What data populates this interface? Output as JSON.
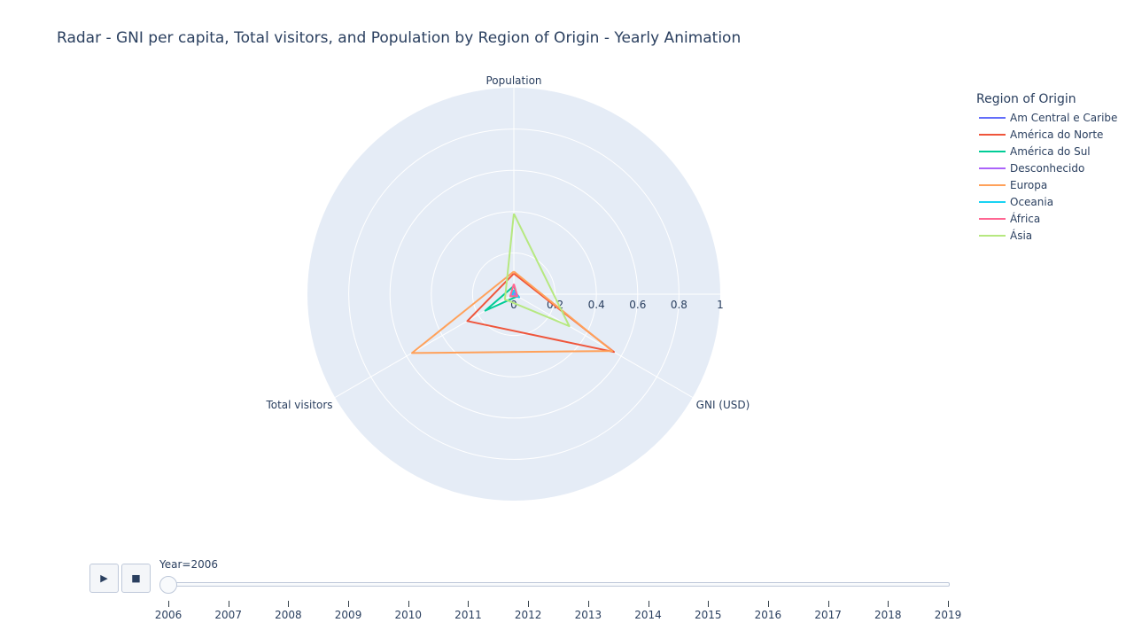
{
  "title": "Radar - GNI per capita, Total visitors, and Population by Region of Origin - Yearly Animation",
  "chart_data": {
    "type": "radar",
    "axes": [
      "Population",
      "GNI (USD)",
      "Total visitors"
    ],
    "radial_ticks": [
      "0",
      "0.2",
      "0.4",
      "0.6",
      "0.8",
      "1"
    ],
    "radial_range": [
      0,
      1
    ],
    "legend_title": "Region of Origin",
    "legend_position": "top-right",
    "series": [
      {
        "name": "Am Central e Caribe",
        "color": "#636efa",
        "values": [
          0.02,
          0.02,
          0.02
        ]
      },
      {
        "name": "América do Norte",
        "color": "#ef553b",
        "values": [
          0.1,
          0.56,
          0.26
        ]
      },
      {
        "name": "América do Sul",
        "color": "#00cc96",
        "values": [
          0.04,
          0.02,
          0.16
        ]
      },
      {
        "name": "Desconhecido",
        "color": "#ab63fa",
        "values": [
          0.01,
          0.01,
          0.01
        ]
      },
      {
        "name": "Europa",
        "color": "#ffa15a",
        "values": [
          0.11,
          0.55,
          0.57
        ]
      },
      {
        "name": "Oceania",
        "color": "#19d3f3",
        "values": [
          0.02,
          0.03,
          0.01
        ]
      },
      {
        "name": "África",
        "color": "#ff6692",
        "values": [
          0.05,
          0.02,
          0.02
        ]
      },
      {
        "name": "Ásia",
        "color": "#b6e880",
        "values": [
          0.39,
          0.31,
          0.05
        ]
      }
    ]
  },
  "animation": {
    "current_label": "Year=2006",
    "current_year": "2006",
    "play_icon": "▶",
    "stop_icon": "■",
    "years": [
      "2006",
      "2007",
      "2008",
      "2009",
      "2010",
      "2011",
      "2012",
      "2013",
      "2014",
      "2015",
      "2016",
      "2017",
      "2018",
      "2019"
    ]
  }
}
